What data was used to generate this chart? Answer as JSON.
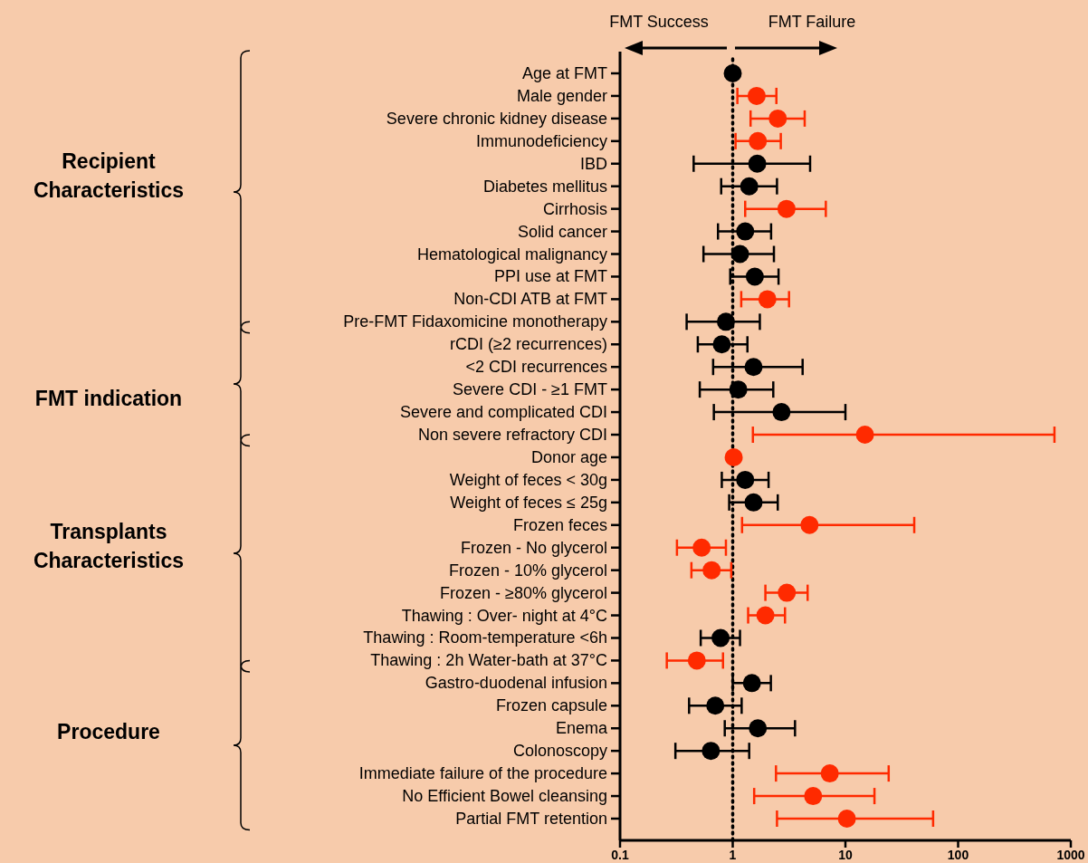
{
  "chart_data": {
    "type": "scatter",
    "orientation": "horizontal",
    "log": "x",
    "marker": "circle",
    "categories": [
      "Age at FMT",
      "Male gender",
      "Severe chronic kidney disease",
      "Immunodeficiency",
      "IBD",
      "Diabetes mellitus",
      "Cirrhosis",
      "Solid cancer",
      "Hematological malignancy",
      "PPI use at FMT",
      "Non-CDI ATB at FMT",
      "Pre-FMT Fidaxomicine monotherapy",
      "rCDI (≥2 recurrences)",
      "<2 CDI recurrences",
      "Severe CDI - ≥1 FMT",
      "Severe and complicated CDI",
      "Non severe refractory CDI",
      "Donor age",
      "Weight of feces < 30g",
      "Weight of feces ≤ 25g",
      "Frozen feces",
      "Frozen - No glycerol",
      "Frozen - 10% glycerol",
      "Frozen - ≥80% glycerol",
      "Thawing : Over- night at 4°C",
      "Thawing : Room-temperature <6h",
      "Thawing : 2h Water-bath at 37°C",
      "Gastro-duodenal infusion",
      "Frozen capsule",
      "Enema",
      "Colonoscopy",
      "Immediate failure of the procedure",
      "No Efficient Bowel cleansing",
      "Partial FMT retention"
    ],
    "values": [
      1.0,
      1.63,
      2.51,
      1.67,
      1.65,
      1.4,
      3.0,
      1.29,
      1.16,
      1.57,
      2.03,
      0.87,
      0.8,
      1.53,
      1.12,
      2.71,
      14.9,
      1.02,
      1.29,
      1.53,
      4.8,
      0.53,
      0.65,
      3.02,
      1.95,
      0.78,
      0.48,
      1.48,
      0.7,
      1.67,
      0.64,
      7.26,
      5.17,
      10.3
    ],
    "errors": [
      null,
      [
        1.1,
        2.44
      ],
      [
        1.44,
        4.35
      ],
      [
        1.06,
        2.67
      ],
      [
        0.45,
        4.86
      ],
      [
        0.79,
        2.47
      ],
      [
        1.29,
        6.7
      ],
      [
        0.74,
        2.19
      ],
      [
        0.55,
        2.32
      ],
      [
        0.95,
        2.55
      ],
      [
        1.19,
        3.16
      ],
      [
        0.39,
        1.74
      ],
      [
        0.49,
        1.35
      ],
      [
        0.67,
        4.17
      ],
      [
        0.51,
        2.29
      ],
      [
        0.68,
        10.0
      ],
      [
        1.51,
        716
      ],
      null,
      [
        0.8,
        2.08
      ],
      [
        0.93,
        2.51
      ],
      [
        1.21,
        40.8
      ],
      [
        0.32,
        0.87
      ],
      [
        0.43,
        0.97
      ],
      [
        1.95,
        4.62
      ],
      [
        1.37,
        2.91
      ],
      [
        0.52,
        1.16
      ],
      [
        0.26,
        0.82
      ],
      [
        1.0,
        2.18
      ],
      [
        0.41,
        1.2
      ],
      [
        0.85,
        3.57
      ],
      [
        0.31,
        1.4
      ],
      [
        2.42,
        24.2
      ],
      [
        1.55,
        18.1
      ],
      [
        2.47,
        60
      ]
    ],
    "colors": [
      "#000000",
      "#ff2a00",
      "#ff2a00",
      "#ff2a00",
      "#000000",
      "#000000",
      "#ff2a00",
      "#000000",
      "#000000",
      "#000000",
      "#ff2a00",
      "#000000",
      "#000000",
      "#000000",
      "#000000",
      "#000000",
      "#ff2a00",
      "#ff2a00",
      "#000000",
      "#000000",
      "#ff2a00",
      "#ff2a00",
      "#ff2a00",
      "#ff2a00",
      "#ff2a00",
      "#000000",
      "#ff2a00",
      "#000000",
      "#000000",
      "#000000",
      "#000000",
      "#ff2a00",
      "#ff2a00",
      "#ff2a00"
    ],
    "xlim": [
      0.1,
      1000
    ],
    "xticks": [
      0.1,
      1,
      10,
      100,
      1000
    ],
    "ref_lines": [
      {
        "axis": "x",
        "value": 1,
        "line_style": "dotted"
      }
    ],
    "annotations": [
      "FMT Success",
      "FMT Failure",
      "Recipient\nCharacteristics",
      "FMT indication",
      "Transplants\nCharacteristics",
      "Procedure"
    ]
  }
}
